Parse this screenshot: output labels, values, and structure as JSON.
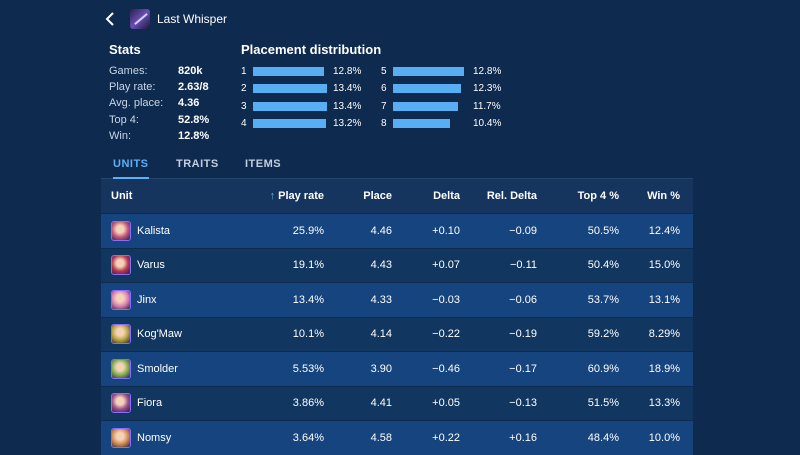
{
  "header": {
    "title": "Last Whisper"
  },
  "stats": {
    "heading": "Stats",
    "rows": [
      {
        "label": "Games:",
        "value": "820k"
      },
      {
        "label": "Play rate:",
        "value": "2.63/8"
      },
      {
        "label": "Avg. place:",
        "value": "4.36"
      },
      {
        "label": "Top 4:",
        "value": "52.8%"
      },
      {
        "label": "Win:",
        "value": "12.8%"
      }
    ]
  },
  "distribution": {
    "heading": "Placement distribution",
    "items": [
      {
        "place": "1",
        "label": "12.8%",
        "value": 12.8
      },
      {
        "place": "2",
        "label": "13.4%",
        "value": 13.4
      },
      {
        "place": "3",
        "label": "13.4%",
        "value": 13.4
      },
      {
        "place": "4",
        "label": "13.2%",
        "value": 13.2
      },
      {
        "place": "5",
        "label": "12.8%",
        "value": 12.8
      },
      {
        "place": "6",
        "label": "12.3%",
        "value": 12.3
      },
      {
        "place": "7",
        "label": "11.7%",
        "value": 11.7
      },
      {
        "place": "8",
        "label": "10.4%",
        "value": 10.4
      }
    ],
    "max_value": 13.4
  },
  "tabs": [
    {
      "label": "UNITS",
      "active": true
    },
    {
      "label": "TRAITS",
      "active": false
    },
    {
      "label": "ITEMS",
      "active": false
    }
  ],
  "table": {
    "columns": {
      "unit": "Unit",
      "play_rate": "Play rate",
      "place": "Place",
      "delta": "Delta",
      "rel_delta": "Rel. Delta",
      "top4": "Top 4 %",
      "win": "Win %"
    },
    "sort_indicator": "↑",
    "rows": [
      {
        "unit": "Kalista",
        "play_rate": "25.9%",
        "place": "4.46",
        "delta": "+0.10",
        "rel_delta": "−0.09",
        "top4": "50.5%",
        "win": "12.4%",
        "color": "#c0567a"
      },
      {
        "unit": "Varus",
        "play_rate": "19.1%",
        "place": "4.43",
        "delta": "+0.07",
        "rel_delta": "−0.11",
        "top4": "50.4%",
        "win": "15.0%",
        "color": "#b8394f"
      },
      {
        "unit": "Jinx",
        "play_rate": "13.4%",
        "place": "4.33",
        "delta": "−0.03",
        "rel_delta": "−0.06",
        "top4": "53.7%",
        "win": "13.1%",
        "color": "#d880b2"
      },
      {
        "unit": "Kog'Maw",
        "play_rate": "10.1%",
        "place": "4.14",
        "delta": "−0.22",
        "rel_delta": "−0.19",
        "top4": "59.2%",
        "win": "8.29%",
        "color": "#b7a23a"
      },
      {
        "unit": "Smolder",
        "play_rate": "5.53%",
        "place": "3.90",
        "delta": "−0.46",
        "rel_delta": "−0.17",
        "top4": "60.9%",
        "win": "18.9%",
        "color": "#7fae4a"
      },
      {
        "unit": "Fiora",
        "play_rate": "3.86%",
        "place": "4.41",
        "delta": "+0.05",
        "rel_delta": "−0.13",
        "top4": "51.5%",
        "win": "13.3%",
        "color": "#9a4f8c"
      },
      {
        "unit": "Nomsy",
        "play_rate": "3.64%",
        "place": "4.58",
        "delta": "+0.22",
        "rel_delta": "+0.16",
        "top4": "48.4%",
        "win": "10.0%",
        "color": "#d08a52"
      }
    ]
  },
  "colors": {
    "accent": "#5cb0f6",
    "bar": "#58aef3",
    "background": "#0f2a4f"
  }
}
